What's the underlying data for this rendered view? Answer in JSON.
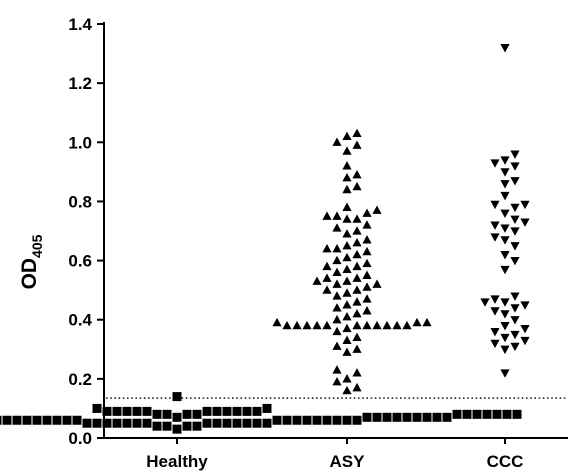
{
  "chart_data": {
    "type": "scatter",
    "title": "",
    "xlabel": "",
    "ylabel": {
      "main": "OD",
      "subscript": "405"
    },
    "ylim": [
      0.0,
      1.4
    ],
    "yticks": [
      "0.0",
      "0.2",
      "0.4",
      "0.6",
      "0.8",
      "1.0",
      "1.2",
      "1.4"
    ],
    "grid": false,
    "threshold": {
      "value": 0.135,
      "style": "dotted"
    },
    "categories": [
      "Healthy",
      "ASY",
      "CCC"
    ],
    "series": [
      {
        "category": "Healthy",
        "marker": "square",
        "values": [
          0.14,
          0.1,
          0.1,
          0.09,
          0.09,
          0.09,
          0.09,
          0.09,
          0.09,
          0.09,
          0.09,
          0.09,
          0.09,
          0.09,
          0.08,
          0.08,
          0.08,
          0.08,
          0.08,
          0.08,
          0.08,
          0.08,
          0.08,
          0.08,
          0.08,
          0.08,
          0.08,
          0.08,
          0.08,
          0.08,
          0.08,
          0.08,
          0.07,
          0.07,
          0.07,
          0.07,
          0.07,
          0.07,
          0.07,
          0.07,
          0.07,
          0.07,
          0.07,
          0.07,
          0.07,
          0.07,
          0.07,
          0.07,
          0.07,
          0.07,
          0.06,
          0.06,
          0.06,
          0.06,
          0.06,
          0.06,
          0.06,
          0.06,
          0.06,
          0.06,
          0.06,
          0.06,
          0.06,
          0.06,
          0.06,
          0.06,
          0.06,
          0.06,
          0.05,
          0.05,
          0.05,
          0.05,
          0.05,
          0.05,
          0.05,
          0.05,
          0.05,
          0.05,
          0.05,
          0.05,
          0.05,
          0.05,
          0.04,
          0.04,
          0.04,
          0.04,
          0.03
        ]
      },
      {
        "category": "ASY",
        "marker": "triangle-up",
        "values": [
          1.03,
          1.02,
          1.0,
          0.99,
          0.97,
          0.92,
          0.89,
          0.88,
          0.85,
          0.84,
          0.78,
          0.77,
          0.76,
          0.75,
          0.75,
          0.74,
          0.74,
          0.72,
          0.71,
          0.7,
          0.69,
          0.67,
          0.66,
          0.65,
          0.64,
          0.64,
          0.63,
          0.62,
          0.61,
          0.6,
          0.59,
          0.58,
          0.58,
          0.57,
          0.56,
          0.55,
          0.54,
          0.54,
          0.53,
          0.53,
          0.52,
          0.52,
          0.51,
          0.5,
          0.5,
          0.49,
          0.48,
          0.47,
          0.46,
          0.45,
          0.44,
          0.43,
          0.42,
          0.41,
          0.4,
          0.39,
          0.39,
          0.39,
          0.38,
          0.38,
          0.38,
          0.38,
          0.38,
          0.38,
          0.38,
          0.38,
          0.38,
          0.38,
          0.38,
          0.37,
          0.36,
          0.34,
          0.33,
          0.31,
          0.3,
          0.29,
          0.23,
          0.22,
          0.2,
          0.19,
          0.17,
          0.16
        ]
      },
      {
        "category": "CCC",
        "marker": "triangle-down",
        "values": [
          1.32,
          0.96,
          0.94,
          0.93,
          0.92,
          0.9,
          0.87,
          0.86,
          0.82,
          0.79,
          0.79,
          0.78,
          0.76,
          0.74,
          0.73,
          0.72,
          0.71,
          0.7,
          0.68,
          0.67,
          0.65,
          0.62,
          0.6,
          0.57,
          0.48,
          0.47,
          0.46,
          0.46,
          0.45,
          0.44,
          0.43,
          0.42,
          0.4,
          0.38,
          0.37,
          0.36,
          0.35,
          0.34,
          0.33,
          0.32,
          0.31,
          0.3,
          0.22
        ]
      }
    ],
    "colors": {
      "marker": "#000000",
      "axis": "#000000"
    }
  }
}
